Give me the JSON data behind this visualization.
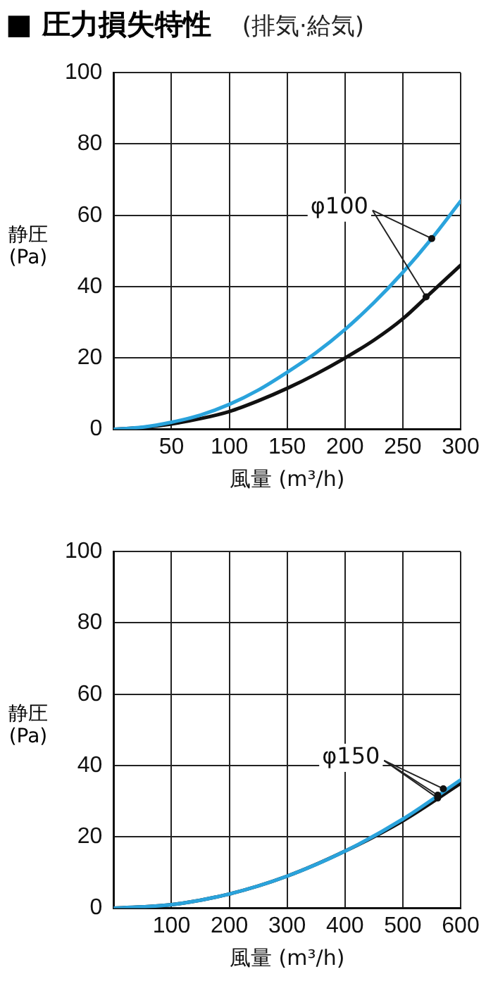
{
  "chart_data": [
    {
      "type": "line",
      "title": "■ 圧力損失特性",
      "subtitle": "(排気·給気)",
      "xlabel": "風量 (m³/h)",
      "ylabel": "静圧(Pa)",
      "series": [
        {
          "color": "#2aa3dc",
          "x": [
            0,
            25,
            50,
            75,
            100,
            125,
            150,
            175,
            200,
            225,
            250,
            275,
            300
          ],
          "values": [
            0,
            0.6,
            2,
            4,
            7,
            11,
            16,
            21.5,
            28,
            35.5,
            44,
            53.5,
            64
          ]
        },
        {
          "color": "#111111",
          "x": [
            0,
            25,
            50,
            75,
            100,
            125,
            150,
            175,
            200,
            225,
            250,
            275,
            300
          ],
          "values": [
            0,
            0.5,
            1.5,
            3,
            5,
            8,
            11.5,
            15.5,
            20,
            25,
            31,
            38.5,
            46
          ]
        }
      ],
      "xlim": [
        0,
        300
      ],
      "xticks": [
        {
          "value": 0,
          "label": null
        },
        50,
        100,
        150,
        200,
        250,
        300
      ],
      "ylim": [
        0,
        100
      ],
      "yticks": [
        0,
        20,
        40,
        60,
        80,
        100
      ],
      "grid": true,
      "marker": "none",
      "line_style": "solid",
      "annotations": [
        {
          "text": "φ100",
          "x": 275,
          "y": 53.5
        }
      ]
    },
    {
      "type": "line",
      "xlabel": "風量 (m³/h)",
      "ylabel": "静圧(Pa)",
      "series": [
        {
          "color": "#2aa3dc",
          "x": [
            0,
            100,
            200,
            300,
            400,
            500,
            600
          ],
          "values": [
            0,
            1,
            4,
            9,
            16,
            25,
            36
          ]
        },
        {
          "color": "#111111",
          "x": [
            0,
            100,
            200,
            300,
            400,
            500,
            600
          ],
          "values": [
            0,
            1,
            4,
            9,
            16,
            24.5,
            35
          ]
        }
      ],
      "xlim": [
        0,
        600
      ],
      "xticks": [
        {
          "value": 0,
          "label": null
        },
        100,
        200,
        300,
        400,
        500,
        600
      ],
      "ylim": [
        0,
        100
      ],
      "yticks": [
        0,
        20,
        40,
        60,
        80,
        100
      ],
      "grid": true,
      "marker": "none",
      "line_style": "solid",
      "annotations": [
        {
          "text": "φ150",
          "x": 570,
          "y": 33.5
        }
      ]
    }
  ]
}
